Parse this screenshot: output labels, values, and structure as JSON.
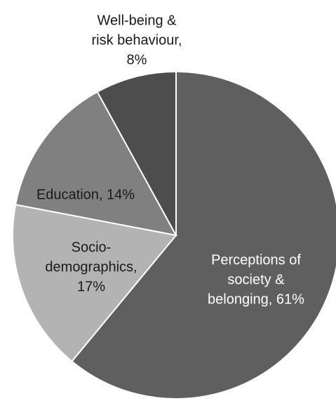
{
  "chart_data": {
    "type": "pie",
    "title": "",
    "start_angle_deg": 0,
    "direction": "clockwise",
    "legend": "none",
    "slices": [
      {
        "name": "Perceptions of society & belonging",
        "value": 61,
        "color": "#5f5f5f",
        "label_color": "#ffffff",
        "label_lines": [
          "Perceptions of",
          "society &",
          "belonging, 61%"
        ]
      },
      {
        "name": "Socio-demographics",
        "value": 17,
        "color": "#b3b3b3",
        "label_color": "#1a1a1a",
        "label_lines": [
          "Socio-",
          "demographics,",
          "17%"
        ]
      },
      {
        "name": "Education",
        "value": 14,
        "color": "#808080",
        "label_color": "#1a1a1a",
        "label_lines": [
          "Education, 14%"
        ]
      },
      {
        "name": "Well-being & risk behaviour",
        "value": 8,
        "color": "#4d4d4d",
        "label_color": "#1a1a1a",
        "label_lines": [
          "Well-being &",
          "risk behaviour,",
          "8%"
        ]
      }
    ]
  }
}
